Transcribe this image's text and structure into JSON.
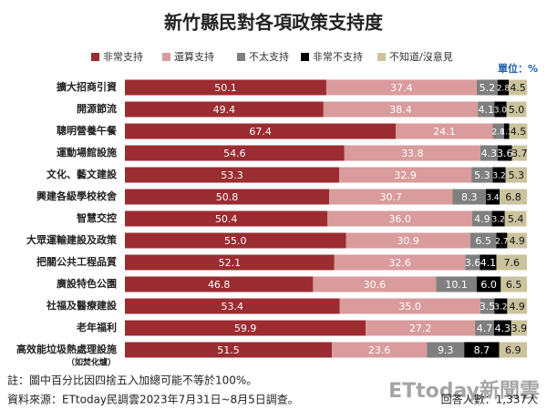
{
  "chart_data": {
    "type": "stacked-bar-horizontal",
    "title": "新竹縣民對各項政策支持度",
    "unit_label": "單位：%",
    "categories": [
      "擴大招商引資",
      "開源節流",
      "聰明營養午餐",
      "運動場館設施",
      "文化、藝文建設",
      "興建各級學校校舍",
      "智慧交控",
      "大眾運輸建設及政策",
      "把關公共工程品質",
      "廣設特色公園",
      "社福及醫療建設",
      "老年福利",
      "高效能垃圾熱處理設施"
    ],
    "category_note": "（如焚化爐）",
    "xlim": [
      0,
      100
    ],
    "series": [
      {
        "name": "非常支持",
        "color": "#9b2c31",
        "values": [
          50.1,
          49.4,
          67.4,
          54.6,
          53.3,
          50.8,
          50.4,
          55.0,
          52.1,
          46.8,
          53.4,
          59.9,
          51.5
        ],
        "value_labels": [
          "50.1",
          "49.4",
          "67.4",
          "54.6",
          "53.3",
          "50.8",
          "50.4",
          "55.0",
          "52.1",
          "46.8",
          "53.4",
          "59.9",
          "51.5"
        ]
      },
      {
        "name": "還算支持",
        "color": "#d99b9c",
        "values": [
          37.4,
          38.4,
          24.1,
          33.8,
          32.9,
          30.7,
          36.0,
          30.9,
          32.6,
          30.6,
          35.0,
          27.2,
          23.6
        ],
        "value_labels": [
          "37.4",
          "38.4",
          "24.1",
          "33.8",
          "32.9",
          "30.7",
          "36.0",
          "30.9",
          "32.6",
          "30.6",
          "35.0",
          "27.2",
          "23.6"
        ]
      },
      {
        "name": "不太支持",
        "color": "#7f7f7f",
        "values": [
          5.2,
          4.1,
          2.8,
          4.3,
          5.3,
          8.3,
          4.9,
          6.5,
          3.6,
          10.1,
          3.5,
          4.7,
          9.3
        ],
        "value_labels": [
          "5.2",
          "4.1",
          "2.8",
          "4.3",
          "5.3",
          "8.3",
          "4.9",
          "6.5",
          "3.6",
          "10.1",
          "3.5",
          "4.7",
          "9.3"
        ]
      },
      {
        "name": "非常不支持",
        "color": "#000000",
        "values": [
          2.8,
          3.0,
          1.3,
          3.6,
          3.2,
          3.4,
          3.2,
          2.7,
          4.1,
          6.0,
          3.2,
          4.3,
          8.7
        ],
        "value_labels": [
          "2.8",
          "3.0",
          "1.3",
          "3.6",
          "3.2",
          "3.4",
          "3.2",
          "2.7",
          "4.1",
          "6.0",
          "3.2",
          "4.3",
          "8.7"
        ]
      },
      {
        "name": "不知道/沒意見",
        "color": "#cbc39d",
        "values": [
          4.5,
          5.0,
          4.5,
          3.7,
          5.3,
          6.8,
          5.4,
          4.9,
          7.6,
          6.5,
          4.9,
          3.9,
          6.9
        ],
        "value_labels": [
          "4.5",
          "5.0",
          "4.5",
          "3.7",
          "5.3",
          "6.8",
          "5.4",
          "4.9",
          "7.6",
          "6.5",
          "4.9",
          "3.9",
          "6.9"
        ]
      }
    ],
    "notes": [
      "註：圖中百分比因四捨五入加總可能不等於100%。",
      "資料來源：ETtoday民調雲2023年7月31日~8月5日調查。"
    ],
    "respondents": "回答人數：1,337人",
    "watermark": "ETtoday新聞雲"
  }
}
